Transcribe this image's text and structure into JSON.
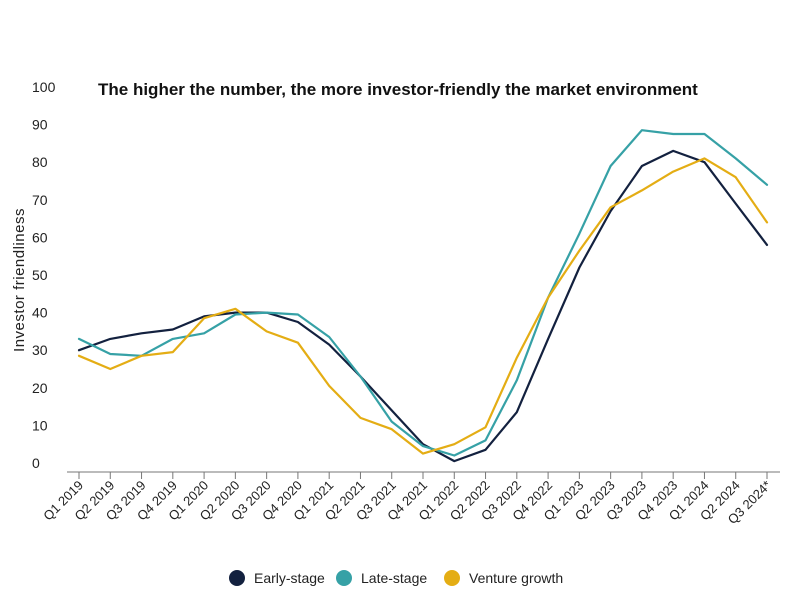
{
  "chart_data": {
    "type": "line",
    "title": "The higher the number, the more investor-friendly the market environment",
    "xlabel": "",
    "ylabel": "Investor friendliness",
    "ylim": [
      0,
      100
    ],
    "yticks": [
      0,
      10,
      20,
      30,
      40,
      50,
      60,
      70,
      80,
      90,
      100
    ],
    "categories": [
      "Q1 2019",
      "Q2 2019",
      "Q3 2019",
      "Q4 2019",
      "Q1 2020",
      "Q2 2020",
      "Q3 2020",
      "Q4 2020",
      "Q1 2021",
      "Q2 2021",
      "Q3 2021",
      "Q4 2021",
      "Q1 2022",
      "Q2 2022",
      "Q3 2022",
      "Q4 2022",
      "Q1 2023",
      "Q2 2023",
      "Q3 2023",
      "Q4 2023",
      "Q1 2024",
      "Q2 2024",
      "Q3 2024*"
    ],
    "grid": false,
    "legend_position": "bottom",
    "series": [
      {
        "name": "Early-stage",
        "color": "#13213f",
        "values": [
          30,
          33,
          34.5,
          35.5,
          39,
          40,
          40,
          37.5,
          31.5,
          23,
          14,
          5,
          0.5,
          3.5,
          13.5,
          33,
          52,
          67,
          79,
          83,
          80,
          69,
          58
        ]
      },
      {
        "name": "Late-stage",
        "color": "#36a1a6",
        "values": [
          33,
          29,
          28.5,
          33,
          34.5,
          39.5,
          40,
          39.5,
          33.5,
          23,
          11,
          4.5,
          2,
          6,
          22,
          44,
          61,
          79,
          88.5,
          87.5,
          87.5,
          81,
          74
        ]
      },
      {
        "name": "Venture growth",
        "color": "#e4ad14",
        "values": [
          28.5,
          25,
          28.5,
          29.5,
          38.5,
          41,
          35,
          32,
          20.5,
          12,
          9,
          2.5,
          5,
          9.5,
          28,
          44,
          56.5,
          68,
          72.5,
          77.5,
          81,
          76,
          64
        ]
      }
    ]
  }
}
